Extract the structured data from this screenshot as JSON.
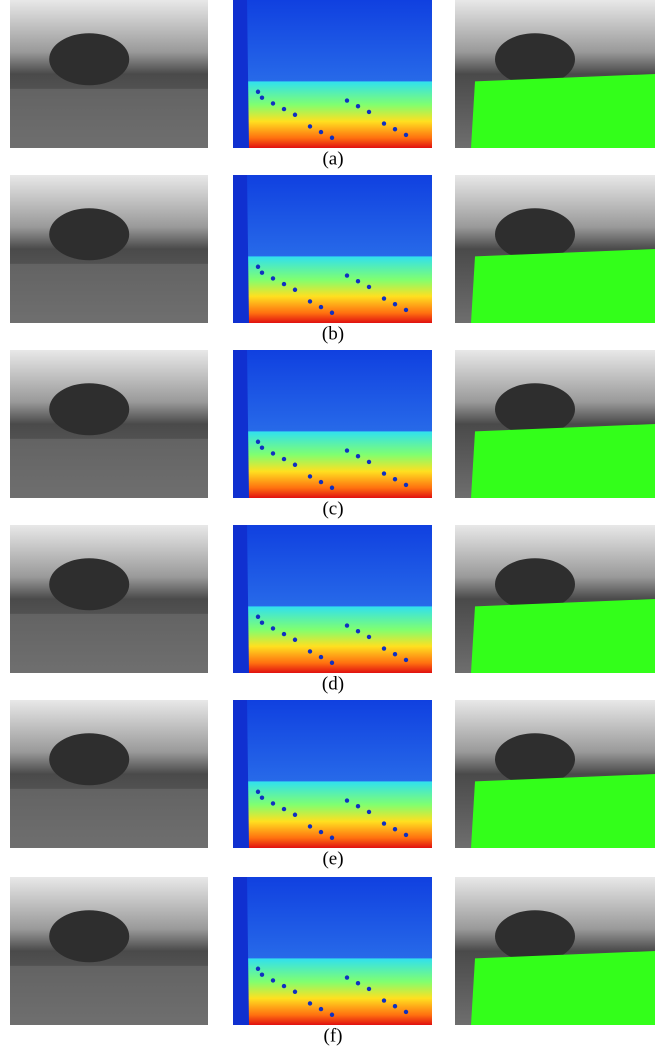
{
  "figure": {
    "labels": [
      "(a)",
      "(b)",
      "(c)",
      "(d)",
      "(e)",
      "(f)"
    ]
  }
}
